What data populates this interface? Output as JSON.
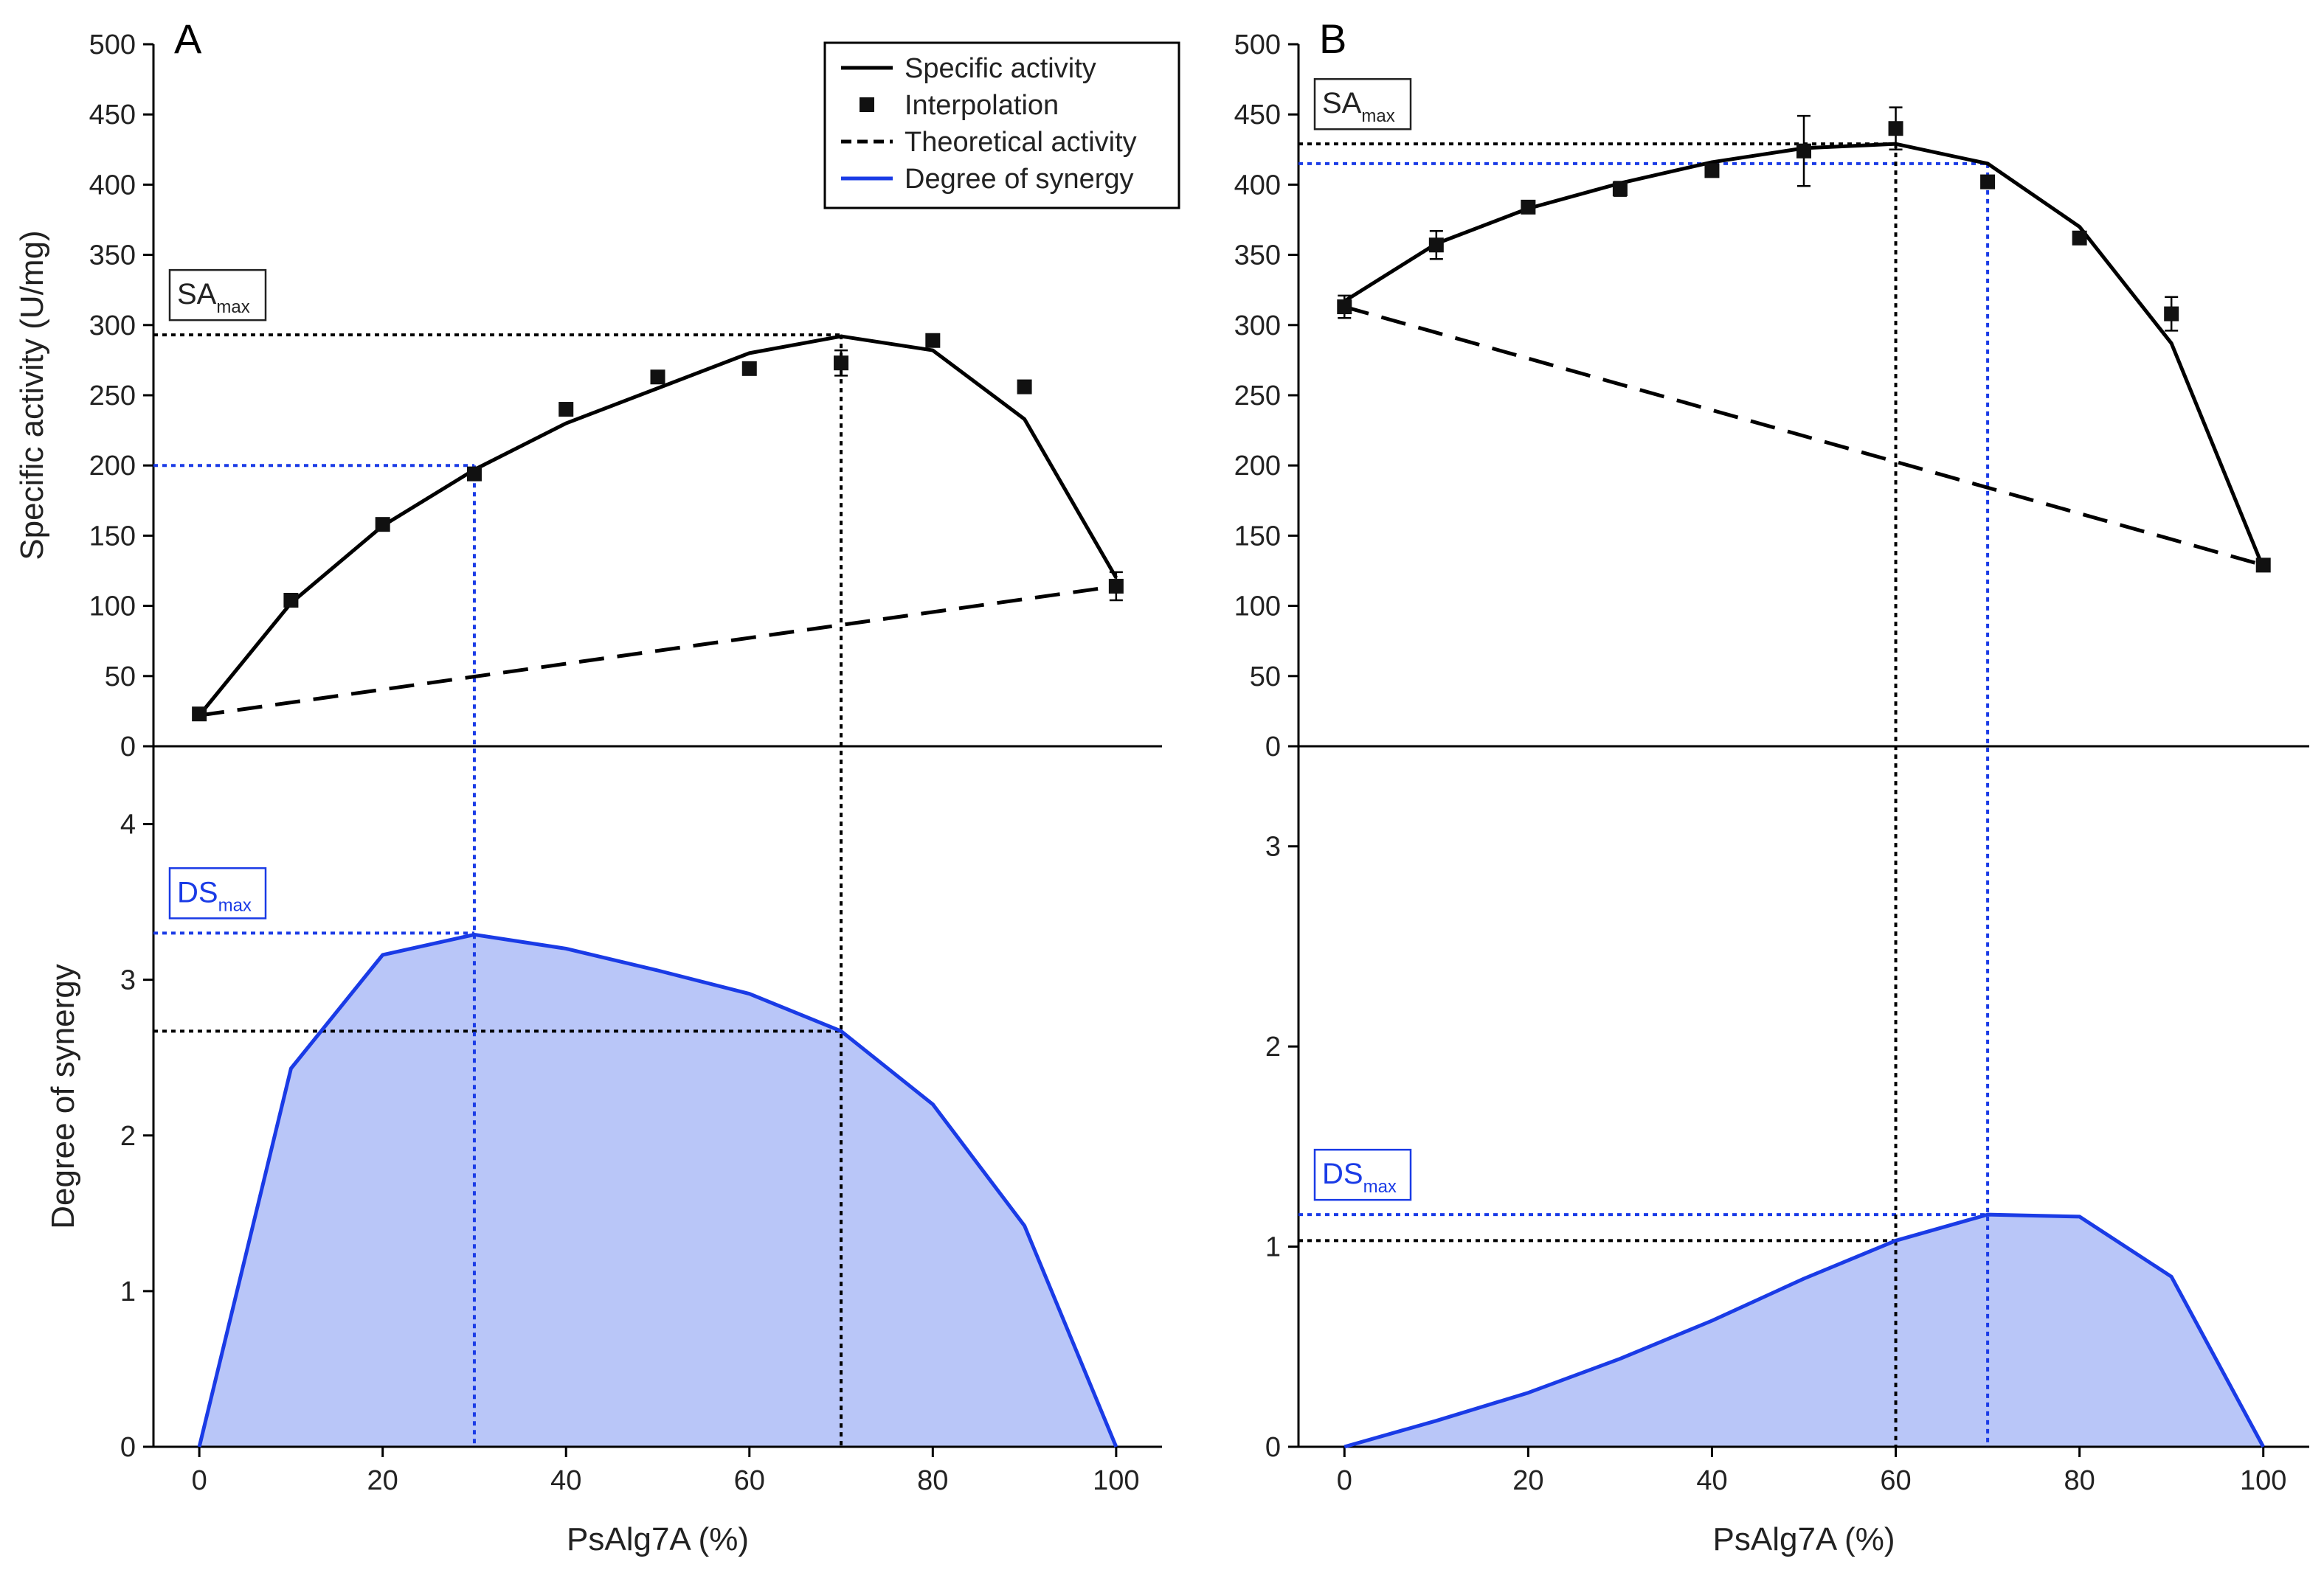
{
  "colors": {
    "axis": "#000000",
    "specific_activity": "#000000",
    "theoretical": "#000000",
    "synergy_line": "#1a3be6",
    "synergy_fill": "#b9c6f8",
    "guide_blue": "#1a3be6",
    "guide_black": "#000000",
    "label_box_blue": "#1a3be6"
  },
  "legend": {
    "items": [
      {
        "label": "Specific activity",
        "kind": "solid-black"
      },
      {
        "label": "Interpolation",
        "kind": "square-marker"
      },
      {
        "label": "Theoretical activity",
        "kind": "dashed-black"
      },
      {
        "label": "Degree of synergy",
        "kind": "solid-blue"
      }
    ]
  },
  "chart_data": [
    {
      "panel": "A",
      "type": "line",
      "xlabel": "PsAlg7A (%)",
      "x_ticks": [
        0,
        20,
        40,
        60,
        80,
        100
      ],
      "x_range": [
        -5,
        105
      ],
      "top": {
        "ylabel": "Specific activity (U/mg)",
        "ylim": [
          0,
          500
        ],
        "y_ticks": [
          0,
          50,
          100,
          150,
          200,
          250,
          300,
          350,
          400,
          450,
          500
        ],
        "series": [
          {
            "name": "Specific activity",
            "x": [
              0,
              10,
              20,
              30,
              40,
              50,
              60,
              70,
              80,
              90,
              100
            ],
            "values": [
              22,
              102,
              157,
              197,
              230,
              255,
              280,
              292,
              282,
              233,
              120
            ]
          },
          {
            "name": "Interpolation",
            "x": [
              0,
              10,
              20,
              30,
              40,
              50,
              60,
              70,
              80,
              90,
              100
            ],
            "values": [
              23,
              104,
              158,
              194,
              240,
              263,
              269,
              273,
              289,
              256,
              114
            ],
            "errors": [
              0,
              0,
              0,
              0,
              0,
              0,
              0,
              9,
              0,
              0,
              10
            ]
          },
          {
            "name": "Theoretical activity",
            "x": [
              0,
              100
            ],
            "values": [
              22,
              114
            ]
          }
        ],
        "label_box": {
          "main": "SA",
          "sub": "max",
          "value": 293
        },
        "guide_lines": [
          {
            "color": "blue",
            "x": 30,
            "y": 200
          },
          {
            "color": "black",
            "x": 70,
            "y": 293
          }
        ]
      },
      "bottom": {
        "ylabel": "Degree of synergy",
        "ylim": [
          0,
          4.5
        ],
        "y_ticks": [
          0,
          1,
          2,
          3,
          4
        ],
        "series": [
          {
            "name": "Degree of synergy",
            "x": [
              0,
              10,
              20,
              30,
              40,
              50,
              60,
              70,
              80,
              90,
              100
            ],
            "values": [
              0,
              2.43,
              3.16,
              3.29,
              3.2,
              3.06,
              2.91,
              2.67,
              2.2,
              1.42,
              0
            ]
          }
        ],
        "label_box": {
          "main": "DS",
          "sub": "max",
          "value": 3.3
        },
        "guide_lines": [
          {
            "color": "blue",
            "x": 30,
            "y": 3.3
          },
          {
            "color": "black",
            "x": 70,
            "y": 2.67
          }
        ]
      }
    },
    {
      "panel": "B",
      "type": "line",
      "xlabel": "PsAlg7A (%)",
      "x_ticks": [
        0,
        20,
        40,
        60,
        80,
        100
      ],
      "x_range": [
        -5,
        105
      ],
      "top": {
        "ylabel": "",
        "ylim": [
          0,
          500
        ],
        "y_ticks": [
          0,
          50,
          100,
          150,
          200,
          250,
          300,
          350,
          400,
          450,
          500
        ],
        "series": [
          {
            "name": "Specific activity",
            "x": [
              0,
              10,
              20,
              30,
              40,
              50,
              60,
              70,
              80,
              90,
              100
            ],
            "values": [
              317,
              358,
              383,
              401,
              416,
              426,
              429,
              415,
              370,
              287,
              127
            ]
          },
          {
            "name": "Interpolation",
            "x": [
              0,
              10,
              20,
              30,
              40,
              50,
              60,
              70,
              80,
              90,
              100
            ],
            "values": [
              313,
              357,
              384,
              397,
              410,
              424,
              440,
              402,
              362,
              308,
              129
            ],
            "errors": [
              8,
              10,
              0,
              5,
              0,
              25,
              15,
              0,
              0,
              12,
              0
            ]
          },
          {
            "name": "Theoretical activity",
            "x": [
              0,
              100
            ],
            "values": [
              313,
              129
            ]
          }
        ],
        "label_box": {
          "main": "SA",
          "sub": "max",
          "value": 429
        },
        "guide_lines": [
          {
            "color": "blue",
            "x": 70,
            "y": 415
          },
          {
            "color": "black",
            "x": 60,
            "y": 429
          }
        ]
      },
      "bottom": {
        "ylabel": "",
        "ylim": [
          0,
          3.5
        ],
        "y_ticks": [
          0,
          1,
          2,
          3
        ],
        "series": [
          {
            "name": "Degree of synergy",
            "x": [
              0,
              10,
              20,
              30,
              40,
              50,
              60,
              70,
              80,
              90,
              100
            ],
            "values": [
              0,
              0.13,
              0.27,
              0.44,
              0.63,
              0.84,
              1.03,
              1.16,
              1.15,
              0.85,
              0
            ]
          }
        ],
        "label_box": {
          "main": "DS",
          "sub": "max",
          "value": 1.16
        },
        "guide_lines": [
          {
            "color": "blue",
            "x": 70,
            "y": 1.16
          },
          {
            "color": "black",
            "x": 60,
            "y": 1.03
          }
        ]
      }
    }
  ]
}
